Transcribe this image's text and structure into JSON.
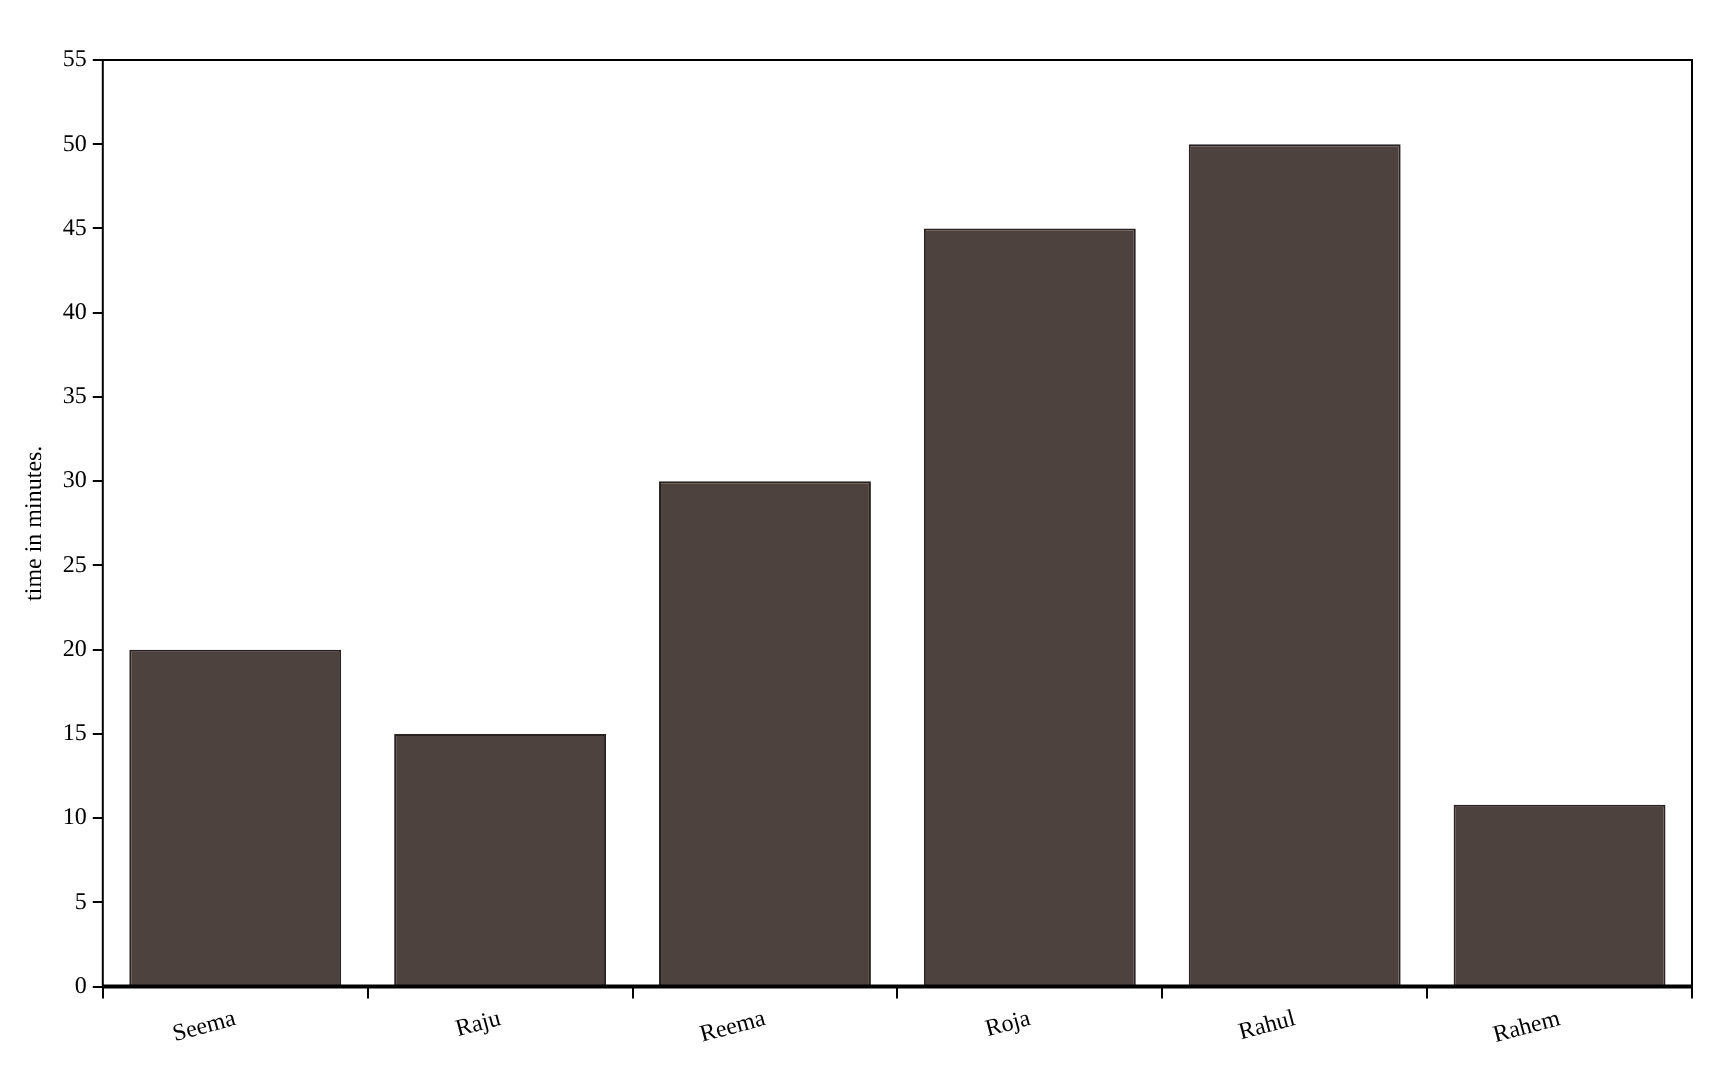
{
  "chart_data": {
    "type": "bar",
    "ylabel": "time in minutes.",
    "categories": [
      "Seema",
      "Raju",
      "Reema",
      "Roja",
      "Rahul",
      "Rahem"
    ],
    "values": [
      20,
      15,
      30,
      45,
      50,
      10.8
    ],
    "color": "#4e423e",
    "ylim": [
      0,
      55
    ],
    "yticks": [
      0,
      5,
      10,
      15,
      20,
      25,
      30,
      35,
      40,
      45,
      50,
      55
    ],
    "grid": false,
    "legend": false
  }
}
